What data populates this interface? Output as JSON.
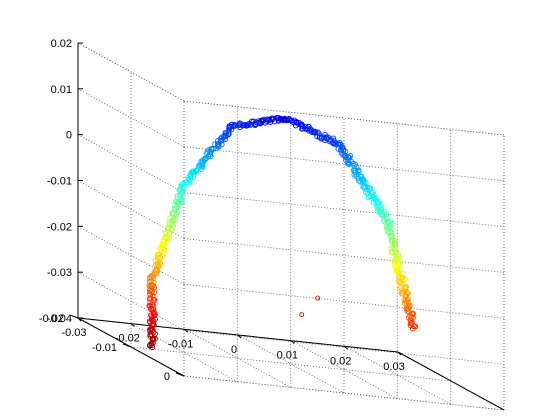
{
  "chart_data": {
    "type": "scatter3d",
    "title": "",
    "xlabel": "",
    "ylabel": "",
    "zlabel": "",
    "grid": true,
    "box": true,
    "colormap": "jet",
    "xlim": [
      -0.03,
      0.03
    ],
    "ylim": [
      -0.02,
      0
    ],
    "zlim": [
      -0.04,
      0.02
    ],
    "x_ticks": [
      "-0.03",
      "-0.02",
      "-0.01",
      "0",
      "0.01",
      "0.02",
      "0.03"
    ],
    "y_ticks": [
      "-0.02",
      "-0.01",
      "0"
    ],
    "z_ticks": [
      "-0.04",
      "-0.03",
      "-0.02",
      "-0.01",
      "0",
      "0.01",
      "0.02"
    ],
    "curve": [
      [
        -0.025,
        -0.011,
        -0.04
      ],
      [
        -0.025,
        -0.011,
        -0.025
      ],
      [
        -0.019,
        -0.011,
        -0.004
      ],
      [
        -0.01,
        -0.011,
        0.01
      ],
      [
        0.0,
        -0.011,
        0.013
      ],
      [
        0.01,
        -0.011,
        0.0085
      ],
      [
        0.019,
        -0.011,
        -0.007
      ],
      [
        0.024,
        -0.011,
        -0.03
      ]
    ],
    "outliers": [
      [
        0.002,
        -0.01,
        -0.029
      ],
      [
        0.005,
        -0.01,
        -0.025
      ]
    ]
  }
}
